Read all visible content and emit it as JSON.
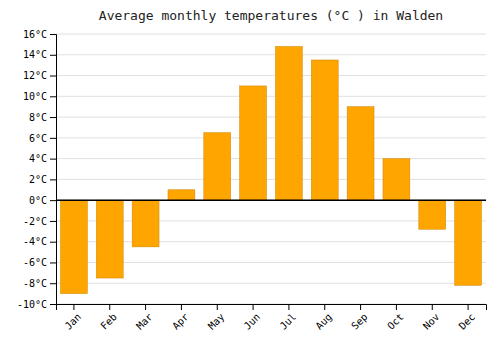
{
  "chart_data": {
    "type": "bar",
    "title": "Average monthly temperatures (°C ) in Walden",
    "categories": [
      "Jan",
      "Feb",
      "Mar",
      "Apr",
      "May",
      "Jun",
      "Jul",
      "Aug",
      "Sep",
      "Oct",
      "Nov",
      "Dec"
    ],
    "values": [
      -9.0,
      -7.5,
      -4.5,
      1.0,
      6.5,
      11.0,
      14.8,
      13.5,
      9.0,
      4.0,
      -2.8,
      -8.2
    ],
    "color": "#FFA500",
    "ylim": [
      -10,
      16
    ],
    "yticks": [
      {
        "value": -10,
        "label": "-10°C"
      },
      {
        "value": -8,
        "label": "-8°C"
      },
      {
        "value": -6,
        "label": "-6°C"
      },
      {
        "value": -4,
        "label": "-4°C"
      },
      {
        "value": -2,
        "label": "-2°C"
      },
      {
        "value": 0,
        "label": "0°C"
      },
      {
        "value": 2,
        "label": "2°C"
      },
      {
        "value": 4,
        "label": "4°C"
      },
      {
        "value": 6,
        "label": "6°C"
      },
      {
        "value": 8,
        "label": "8°C"
      },
      {
        "value": 10,
        "label": "10°C"
      },
      {
        "value": 12,
        "label": "12°C"
      },
      {
        "value": 14,
        "label": "14°C"
      },
      {
        "value": 16,
        "label": "16°C"
      }
    ],
    "grid": true
  }
}
